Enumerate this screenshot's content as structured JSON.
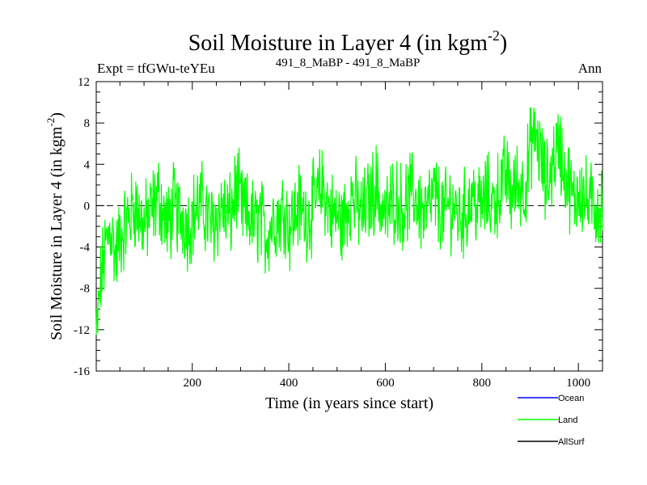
{
  "chart_data": {
    "type": "line",
    "title": "Soil Moisture in Layer 4 (in kgm",
    "title_sup": "-2",
    "title_close": ")",
    "subtitle_left": "Expt = tfGWu-teYEu",
    "subtitle_center": "491_8_MaBP - 491_8_MaBP",
    "subtitle_right": "Ann",
    "xlabel": "Time (in years since start)",
    "ylabel": "Soil Moisture in Layer 4 (in kgm",
    "ylabel_sup": "-2",
    "ylabel_close": ")",
    "xlim": [
      1,
      1050
    ],
    "ylim": [
      -16,
      12
    ],
    "x_ticks": [
      200,
      400,
      600,
      800,
      1000
    ],
    "y_ticks": [
      -16,
      -12,
      -8,
      -4,
      0,
      4,
      8,
      12
    ],
    "zero_line": "dashed",
    "series": [
      {
        "name": "Ocean",
        "color": "#0000ff",
        "values": []
      },
      {
        "name": "Land",
        "color": "#00ff00",
        "x_start": 1,
        "x_end": 1050,
        "sample_step_years": 10,
        "values": [
          -13,
          -7,
          -4,
          -2,
          -5,
          -3,
          -2,
          -1,
          0,
          -1,
          -2,
          -1,
          0,
          1,
          -1,
          -2,
          0,
          -1,
          -1,
          -2,
          -1,
          0,
          0,
          -1,
          -2,
          -1,
          0,
          -1,
          -1,
          2,
          0,
          -1,
          -1,
          -2,
          -1,
          -3,
          -2,
          -1,
          -1,
          0,
          -2,
          -1,
          0,
          -1,
          -1,
          0,
          1,
          2,
          0,
          -1,
          -1,
          -2,
          0,
          1,
          0,
          -1,
          0,
          1,
          2,
          0,
          -1,
          0,
          1,
          0,
          0,
          1,
          1,
          0,
          -1,
          0,
          1,
          0,
          -1,
          0,
          0,
          -1,
          -1,
          0,
          1,
          0,
          0,
          1,
          0,
          1,
          2,
          3,
          1,
          2,
          2,
          2,
          6,
          7,
          5,
          2,
          3,
          5,
          6,
          3,
          2,
          0,
          2,
          1,
          0
        ]
      },
      {
        "name": "AllSurf",
        "color": "#000000",
        "values": []
      }
    ],
    "legend": [
      "Ocean",
      "Land",
      "AllSurf"
    ],
    "legend_position": "bottom-right"
  }
}
